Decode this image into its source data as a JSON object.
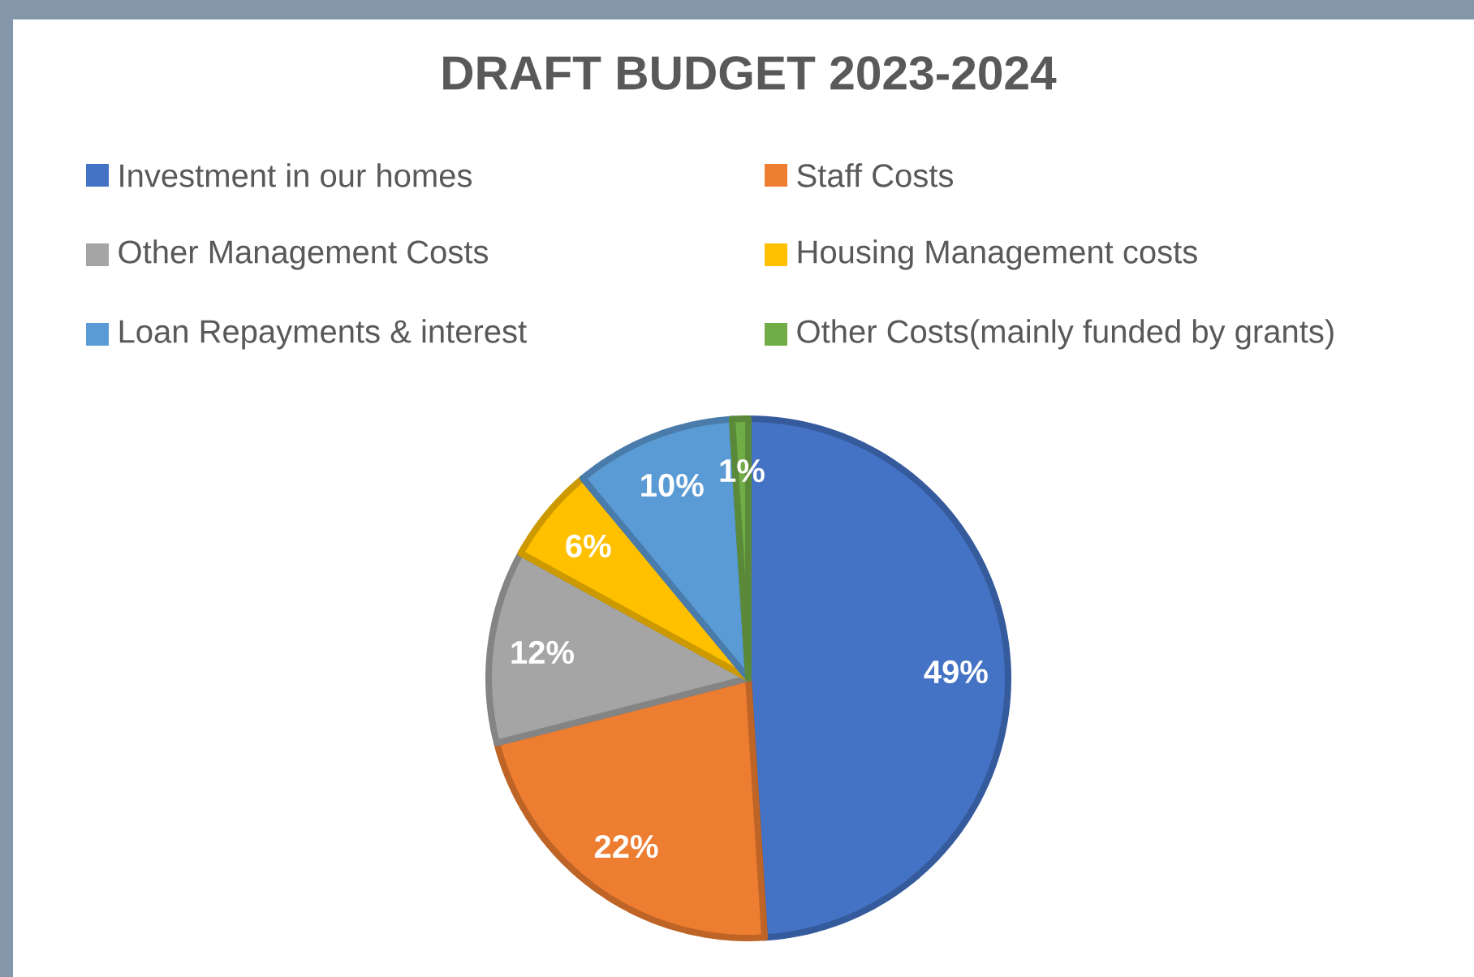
{
  "chart_data": {
    "type": "pie",
    "title": "DRAFT BUDGET 2023-2024",
    "categories": [
      "Investment in our homes",
      "Staff Costs",
      "Other Management Costs",
      "Housing Management costs",
      "Loan Repayments & interest",
      "Other Costs(mainly funded by grants)"
    ],
    "values": [
      49,
      22,
      12,
      6,
      10,
      1
    ],
    "value_labels": [
      "49%",
      "22%",
      "12%",
      "6%",
      "10%",
      "1%"
    ],
    "colors": [
      "#4472c4",
      "#ed7d31",
      "#a5a5a5",
      "#ffc000",
      "#5b9bd5",
      "#70ad47"
    ],
    "legend": "top"
  }
}
